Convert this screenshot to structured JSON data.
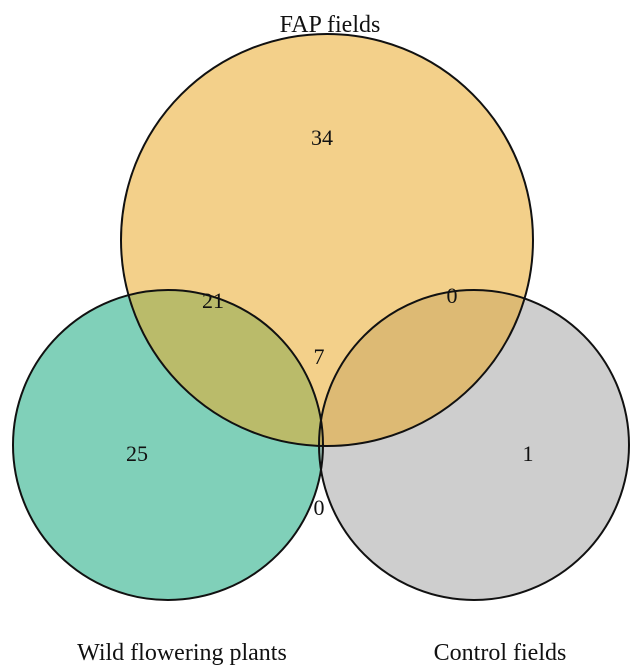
{
  "sets": {
    "fap": {
      "label": "FAP fields",
      "color": "#EAAA2A"
    },
    "wild": {
      "label": "Wild flowering plants",
      "color": "#2BB08A"
    },
    "control": {
      "label": "Control fields",
      "color": "#A6A6A6"
    }
  },
  "regions": {
    "fap_only": "34",
    "fap_wild": "21",
    "fap_control": "0",
    "all_three": "7",
    "wild_only": "25",
    "wild_control": "0",
    "control_only": "1"
  }
}
